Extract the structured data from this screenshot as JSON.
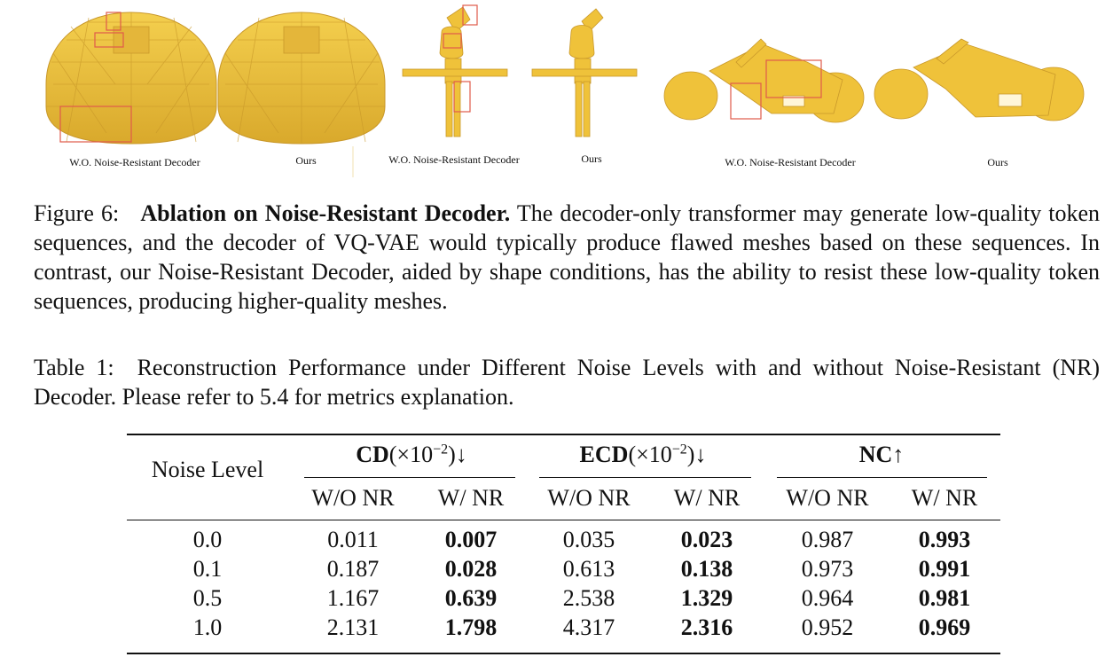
{
  "figure": {
    "captions": [
      "W.O. Noise-Resistant Decoder",
      "Ours",
      "W.O. Noise-Resistant Decoder",
      "Ours",
      "W.O. Noise-Resistant Decoder",
      "Ours"
    ],
    "mesh_color": "#EFC23A",
    "highlight_color": "#E05A4A"
  },
  "figure_caption": {
    "label": "Figure 6:",
    "title": "Ablation on Noise-Resistant Decoder.",
    "body": "The decoder-only transformer may generate low-quality token sequences, and the decoder of VQ-VAE would typically produce flawed meshes based on these sequences. In contrast, our Noise-Resistant Decoder, aided by shape conditions, has the ability to resist these low-quality token sequences, producing higher-quality meshes."
  },
  "table_caption": {
    "label": "Table 1:",
    "body": "Reconstruction Performance under Different Noise Levels with and without Noise-Resistant (NR) Decoder. Please refer to 5.4 for metrics explanation."
  },
  "table": {
    "row_header": "Noise Level",
    "groups": [
      {
        "metric": "CD",
        "unit": "(×10",
        "exp": "−2",
        "suffix": ")↓"
      },
      {
        "metric": "ECD",
        "unit": "(×10",
        "exp": "−2",
        "suffix": ")↓"
      },
      {
        "metric": "NC",
        "unit": "",
        "exp": "",
        "suffix": "↑"
      }
    ],
    "subheaders": [
      "W/O NR",
      "W/ NR",
      "W/O NR",
      "W/ NR",
      "W/O NR",
      "W/ NR"
    ],
    "rows": [
      {
        "level": "0.0",
        "values": [
          "0.011",
          "0.007",
          "0.035",
          "0.023",
          "0.987",
          "0.993"
        ]
      },
      {
        "level": "0.1",
        "values": [
          "0.187",
          "0.028",
          "0.613",
          "0.138",
          "0.973",
          "0.991"
        ]
      },
      {
        "level": "0.5",
        "values": [
          "1.167",
          "0.639",
          "2.538",
          "1.329",
          "0.964",
          "0.981"
        ]
      },
      {
        "level": "1.0",
        "values": [
          "2.131",
          "1.798",
          "4.317",
          "2.316",
          "0.952",
          "0.969"
        ]
      }
    ]
  }
}
